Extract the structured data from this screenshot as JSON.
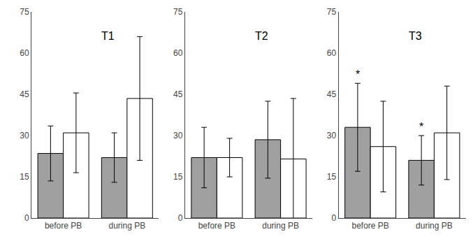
{
  "chart_data": [
    {
      "type": "bar",
      "title": "T1",
      "categories": [
        "before PB",
        "during PB"
      ],
      "series": [
        {
          "color": "#a0a0a0",
          "values": [
            23.5,
            22.0
          ],
          "errors": [
            10.0,
            9.0
          ],
          "annotations": [
            null,
            null
          ]
        },
        {
          "color": "#ffffff",
          "values": [
            31.0,
            43.5
          ],
          "errors": [
            14.5,
            22.5
          ],
          "annotations": [
            null,
            null
          ]
        }
      ],
      "ylim": [
        0,
        75
      ],
      "yticks": [
        0,
        15,
        30,
        45,
        60,
        75
      ],
      "grid": false
    },
    {
      "type": "bar",
      "title": "T2",
      "categories": [
        "before PB",
        "during PB"
      ],
      "series": [
        {
          "color": "#a0a0a0",
          "values": [
            22.0,
            28.5
          ],
          "errors": [
            11.0,
            14.0
          ],
          "annotations": [
            null,
            null
          ]
        },
        {
          "color": "#ffffff",
          "values": [
            22.0,
            21.5
          ],
          "errors": [
            7.0,
            22.0
          ],
          "annotations": [
            null,
            null
          ]
        }
      ],
      "ylim": [
        0,
        75
      ],
      "yticks": [
        0,
        15,
        30,
        45,
        60,
        75
      ],
      "grid": false
    },
    {
      "type": "bar",
      "title": "T3",
      "categories": [
        "before PB",
        "during PB"
      ],
      "series": [
        {
          "color": "#a0a0a0",
          "values": [
            33.0,
            21.0
          ],
          "errors": [
            16.0,
            9.0
          ],
          "annotations": [
            "*",
            "*"
          ]
        },
        {
          "color": "#ffffff",
          "values": [
            26.0,
            31.0
          ],
          "errors": [
            16.5,
            17.0
          ],
          "annotations": [
            null,
            null
          ]
        }
      ],
      "ylim": [
        0,
        75
      ],
      "yticks": [
        0,
        15,
        30,
        45,
        60,
        75
      ],
      "grid": false
    }
  ]
}
